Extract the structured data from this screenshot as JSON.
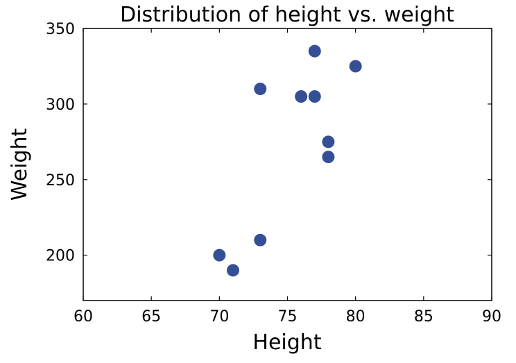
{
  "chart_data": {
    "type": "scatter",
    "title": "Distribution of height vs. weight",
    "xlabel": "Height",
    "ylabel": "Weight",
    "xlim": [
      60,
      90
    ],
    "ylim": [
      170,
      350
    ],
    "xticks": [
      60,
      65,
      70,
      75,
      80,
      85,
      90
    ],
    "yticks": [
      200,
      250,
      300,
      350
    ],
    "grid": false,
    "marker_color": "#354f96",
    "points": [
      {
        "x": 70,
        "y": 200
      },
      {
        "x": 71,
        "y": 190
      },
      {
        "x": 73,
        "y": 210
      },
      {
        "x": 73,
        "y": 310
      },
      {
        "x": 76,
        "y": 305
      },
      {
        "x": 77,
        "y": 305
      },
      {
        "x": 77,
        "y": 335
      },
      {
        "x": 78,
        "y": 275
      },
      {
        "x": 78,
        "y": 265
      },
      {
        "x": 80,
        "y": 325
      }
    ]
  }
}
